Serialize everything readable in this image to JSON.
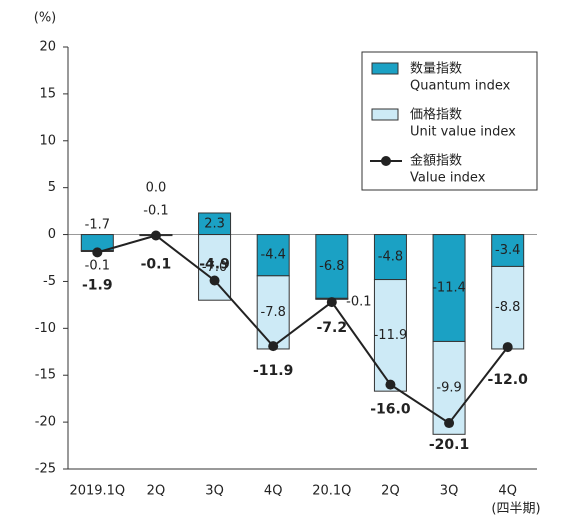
{
  "chart_data": {
    "type": "bar_line",
    "y_unit": "(%)",
    "x_unit": "(四半期)",
    "categories": [
      "2019.1Q",
      "2Q",
      "3Q",
      "4Q",
      "20.1Q",
      "2Q",
      "3Q",
      "4Q"
    ],
    "series": [
      {
        "name": "数量指数",
        "name_en": "Quantum index",
        "type": "bar",
        "color": "#1ba1c4",
        "values": [
          -1.7,
          0.0,
          2.3,
          -4.4,
          -6.8,
          -4.8,
          -11.4,
          -3.4
        ],
        "value_labels": [
          "-1.7",
          "0.0",
          "2.3",
          "-4.4",
          "-6.8",
          "-4.8",
          "-11.4",
          "-3.4"
        ]
      },
      {
        "name": "価格指数",
        "name_en": "Unit value index",
        "type": "bar",
        "color": "#cdeaf6",
        "values": [
          -0.1,
          -0.1,
          -7.0,
          -7.8,
          -0.1,
          -11.9,
          -9.9,
          -8.8
        ],
        "value_labels": [
          "-0.1",
          "-0.1",
          "-7.0",
          "-7.8",
          "-0.1",
          "-11.9",
          "-9.9",
          "-8.8"
        ]
      },
      {
        "name": "金額指数",
        "name_en": "Value index",
        "type": "line",
        "color": "#222222",
        "values": [
          -1.9,
          -0.1,
          -4.9,
          -11.9,
          -7.2,
          -16.0,
          -20.1,
          -12.0
        ],
        "value_labels": [
          "-1.9",
          "-0.1",
          "-4.9",
          "-11.9",
          "-7.2",
          "-16.0",
          "-20.1",
          "-12.0"
        ]
      }
    ],
    "ylim": [
      -25,
      20
    ],
    "yticks": [
      20,
      15,
      10,
      5,
      0,
      -5,
      -10,
      -15,
      -20,
      -25
    ],
    "grid": false
  }
}
